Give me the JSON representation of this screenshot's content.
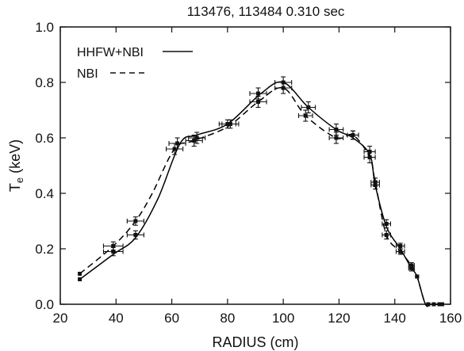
{
  "chart_data": {
    "type": "line",
    "title": "113476, 113484  0.310 sec",
    "xlabel": "RADIUS (cm)",
    "ylabel_main": "T",
    "ylabel_sub": "e",
    "ylabel_unit": " (keV)",
    "xlim": [
      20,
      160
    ],
    "ylim": [
      0.0,
      1.0
    ],
    "xticks": [
      20,
      40,
      60,
      80,
      100,
      120,
      140,
      160
    ],
    "yticks": [
      0.0,
      0.2,
      0.4,
      0.6,
      0.8,
      1.0
    ],
    "xtick_labels": [
      "20",
      "40",
      "60",
      "80",
      "100",
      "120",
      "140",
      "160"
    ],
    "ytick_labels": [
      "0.0",
      "0.2",
      "0.4",
      "0.6",
      "0.8",
      "1.0"
    ],
    "grid": false,
    "legend_position": "top-left",
    "series": [
      {
        "name": "HHFW+NBI",
        "style": "solid",
        "color": "#000000",
        "x": [
          27,
          39,
          47,
          55,
          63,
          69,
          80,
          92,
          100,
          109,
          119,
          125,
          131,
          133,
          137,
          142,
          146,
          148,
          151,
          153,
          156
        ],
        "y": [
          0.09,
          0.18,
          0.24,
          0.38,
          0.58,
          0.61,
          0.65,
          0.76,
          0.8,
          0.71,
          0.63,
          0.6,
          0.54,
          0.43,
          0.28,
          0.2,
          0.13,
          0.1,
          0.0,
          0.0,
          0.0
        ],
        "points": [
          {
            "x": 27,
            "y": 0.09,
            "xerr": 0,
            "yerr": 0
          },
          {
            "x": 39,
            "y": 0.19,
            "xerr": 3.5,
            "yerr": 0.015
          },
          {
            "x": 47,
            "y": 0.25,
            "xerr": 3.0,
            "yerr": 0.015
          },
          {
            "x": 62,
            "y": 0.58,
            "xerr": 3.0,
            "yerr": 0.02
          },
          {
            "x": 69,
            "y": 0.6,
            "xerr": 3.0,
            "yerr": 0.02
          },
          {
            "x": 80,
            "y": 0.65,
            "xerr": 3.0,
            "yerr": 0.015
          },
          {
            "x": 91,
            "y": 0.76,
            "xerr": 3.0,
            "yerr": 0.02
          },
          {
            "x": 100,
            "y": 0.8,
            "xerr": 3.0,
            "yerr": 0.02
          },
          {
            "x": 109,
            "y": 0.71,
            "xerr": 2.5,
            "yerr": 0.02
          },
          {
            "x": 119,
            "y": 0.63,
            "xerr": 2.5,
            "yerr": 0.02
          },
          {
            "x": 125,
            "y": 0.61,
            "xerr": 2.0,
            "yerr": 0.015
          },
          {
            "x": 131,
            "y": 0.55,
            "xerr": 2.0,
            "yerr": 0.02
          },
          {
            "x": 133,
            "y": 0.44,
            "xerr": 1.5,
            "yerr": 0.015
          },
          {
            "x": 137,
            "y": 0.29,
            "xerr": 1.5,
            "yerr": 0.015
          },
          {
            "x": 142,
            "y": 0.21,
            "xerr": 1.5,
            "yerr": 0.01
          },
          {
            "x": 146,
            "y": 0.13,
            "xerr": 1.0,
            "yerr": 0.01
          },
          {
            "x": 148,
            "y": 0.1,
            "xerr": 0,
            "yerr": 0
          },
          {
            "x": 152,
            "y": 0.0,
            "xerr": 0,
            "yerr": 0
          },
          {
            "x": 156,
            "y": 0.0,
            "xerr": 0,
            "yerr": 0
          }
        ]
      },
      {
        "name": "NBI",
        "style": "dashed",
        "color": "#000000",
        "x": [
          27,
          39,
          47,
          53,
          61,
          68,
          80,
          91,
          100,
          108,
          119,
          125,
          131,
          133,
          137,
          142,
          146,
          148,
          151,
          153,
          156
        ],
        "y": [
          0.11,
          0.21,
          0.3,
          0.4,
          0.56,
          0.59,
          0.64,
          0.73,
          0.78,
          0.68,
          0.6,
          0.61,
          0.53,
          0.44,
          0.25,
          0.19,
          0.14,
          0.1,
          0.0,
          0.0,
          0.0
        ],
        "points": [
          {
            "x": 27,
            "y": 0.11,
            "xerr": 0,
            "yerr": 0
          },
          {
            "x": 39,
            "y": 0.21,
            "xerr": 3.5,
            "yerr": 0.015
          },
          {
            "x": 47,
            "y": 0.3,
            "xerr": 3.0,
            "yerr": 0.015
          },
          {
            "x": 61,
            "y": 0.56,
            "xerr": 3.0,
            "yerr": 0.02
          },
          {
            "x": 68,
            "y": 0.59,
            "xerr": 3.0,
            "yerr": 0.02
          },
          {
            "x": 81,
            "y": 0.65,
            "xerr": 3.0,
            "yerr": 0.015
          },
          {
            "x": 91,
            "y": 0.73,
            "xerr": 3.0,
            "yerr": 0.02
          },
          {
            "x": 100,
            "y": 0.78,
            "xerr": 3.0,
            "yerr": 0.02
          },
          {
            "x": 108,
            "y": 0.68,
            "xerr": 2.5,
            "yerr": 0.02
          },
          {
            "x": 119,
            "y": 0.6,
            "xerr": 2.5,
            "yerr": 0.02
          },
          {
            "x": 125,
            "y": 0.61,
            "xerr": 2.0,
            "yerr": 0.015
          },
          {
            "x": 131,
            "y": 0.53,
            "xerr": 2.0,
            "yerr": 0.02
          },
          {
            "x": 133,
            "y": 0.43,
            "xerr": 1.5,
            "yerr": 0.015
          },
          {
            "x": 137,
            "y": 0.25,
            "xerr": 1.5,
            "yerr": 0.015
          },
          {
            "x": 142,
            "y": 0.19,
            "xerr": 1.5,
            "yerr": 0.01
          },
          {
            "x": 146,
            "y": 0.14,
            "xerr": 1.0,
            "yerr": 0.01
          },
          {
            "x": 148,
            "y": 0.1,
            "xerr": 0,
            "yerr": 0
          },
          {
            "x": 152,
            "y": 0.0,
            "xerr": 0,
            "yerr": 0
          },
          {
            "x": 154,
            "y": 0.0,
            "xerr": 0,
            "yerr": 0
          },
          {
            "x": 157,
            "y": 0.0,
            "xerr": 0,
            "yerr": 0
          }
        ]
      }
    ]
  }
}
